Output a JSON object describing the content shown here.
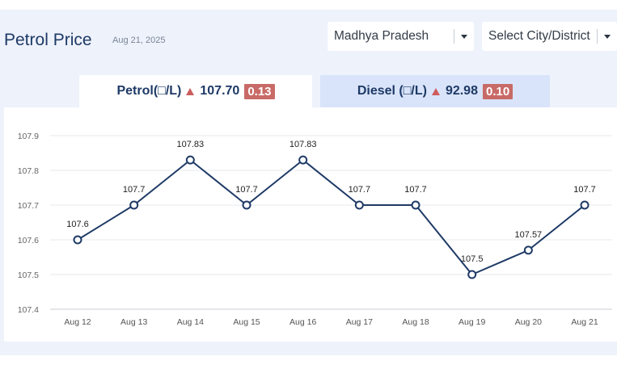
{
  "header": {
    "title": "Petrol Price",
    "date": "Aug 21, 2025",
    "state_select": "Madhya Pradesh",
    "city_select": "Select City/District"
  },
  "tabs": {
    "petrol": {
      "label": "Petrol(□/L)",
      "price": "107.70",
      "change": "0.13"
    },
    "diesel": {
      "label": "Diesel (□/L)",
      "price": "92.98",
      "change": "0.10"
    }
  },
  "colors": {
    "line": "#1e3a66",
    "change_badge": "#c86a67",
    "up_arrow": "#cd5c5c",
    "active_tab": "#ffffff",
    "inactive_tab": "#d9e4fa"
  },
  "chart_data": {
    "type": "line",
    "title": "",
    "xlabel": "",
    "ylabel": "",
    "categories": [
      "Aug 12",
      "Aug 13",
      "Aug 14",
      "Aug 15",
      "Aug 16",
      "Aug 17",
      "Aug 18",
      "Aug 19",
      "Aug 20",
      "Aug 21"
    ],
    "values": [
      107.6,
      107.7,
      107.83,
      107.7,
      107.83,
      107.7,
      107.7,
      107.5,
      107.57,
      107.7
    ],
    "point_labels": [
      "107.6",
      "107.7",
      "107.83",
      "107.7",
      "107.83",
      "107.7",
      "107.7",
      "107.5",
      "107.57",
      "107.7"
    ],
    "yticks": [
      "107.4",
      "107.5",
      "107.6",
      "107.7",
      "107.8",
      "107.9"
    ],
    "ylim": [
      107.4,
      107.9
    ],
    "grid": true,
    "legend": "none"
  }
}
